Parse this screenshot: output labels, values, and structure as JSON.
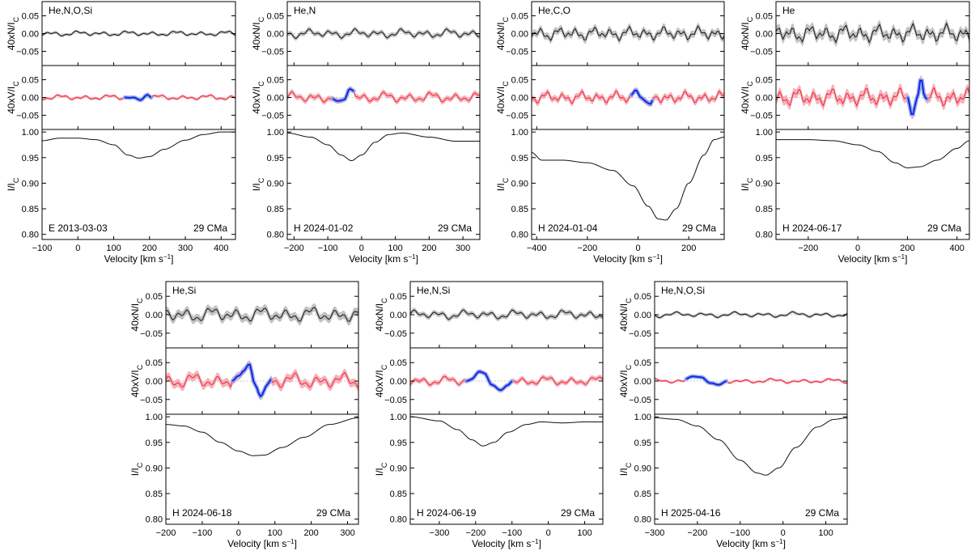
{
  "figure": {
    "star": "29 CMa",
    "n_label": "40xN/I",
    "v_label": "40xV/I",
    "i_label": "I/I",
    "label_sub": "C",
    "xlabel_main": "Velocity [km s",
    "xlabel_sup": "−1",
    "xlabel_end": "]",
    "colors": {
      "null": "#222222",
      "null_band": "#c2c2c2",
      "stokes": "#ee3344",
      "stokes_band": "#f6b3bb",
      "signal": "#0a22dd",
      "signal_band": "#93a6ee",
      "intensity": "#111111",
      "zero_line": "#c8c8c8"
    }
  },
  "chart_data": [
    {
      "type": "line",
      "title": "E 2013-03-03",
      "elements": "He,N,O,Si",
      "star": "29 CMa",
      "xlabel": "Velocity [km s−1]",
      "xlim": [
        -100,
        440
      ],
      "xticks": [
        -100,
        0,
        100,
        200,
        300,
        400
      ],
      "null_ylim": [
        -0.09,
        0.09
      ],
      "v_ylim": [
        -0.09,
        0.09
      ],
      "i_ylim": [
        0.79,
        1.005
      ],
      "band": [
        130,
        205
      ],
      "noise": {
        "n": 0.0035,
        "v": 0.0035,
        "nband": 0.004,
        "vband": 0.004
      },
      "null_amplitude": "small",
      "stokes_v_signal": [
        [
          130,
          0.0
        ],
        [
          155,
          0.0
        ],
        [
          175,
          -0.008
        ],
        [
          195,
          0.008
        ],
        [
          205,
          0.0
        ]
      ],
      "intensity_profile": [
        [
          -100,
          0.983
        ],
        [
          -50,
          0.988
        ],
        [
          0,
          0.988
        ],
        [
          50,
          0.985
        ],
        [
          100,
          0.975
        ],
        [
          140,
          0.955
        ],
        [
          170,
          0.949
        ],
        [
          200,
          0.952
        ],
        [
          240,
          0.966
        ],
        [
          300,
          0.984
        ],
        [
          350,
          0.995
        ],
        [
          400,
          1.0
        ],
        [
          440,
          1.0
        ]
      ]
    },
    {
      "type": "line",
      "title": "H 2024-01-02",
      "elements": "He,N",
      "star": "29 CMa",
      "xlabel": "Velocity [km s−1]",
      "xlim": [
        -220,
        350
      ],
      "xticks": [
        -200,
        -100,
        0,
        100,
        200,
        300
      ],
      "null_ylim": [
        -0.09,
        0.09
      ],
      "v_ylim": [
        -0.09,
        0.09
      ],
      "i_ylim": [
        0.79,
        1.005
      ],
      "band": [
        -90,
        -20
      ],
      "noise": {
        "n": 0.006,
        "v": 0.007,
        "nband": 0.006,
        "vband": 0.006
      },
      "null_amplitude": "moderate",
      "stokes_v_signal": [
        [
          -90,
          0.0
        ],
        [
          -70,
          -0.01
        ],
        [
          -50,
          -0.006
        ],
        [
          -35,
          0.025
        ],
        [
          -20,
          0.018
        ]
      ],
      "intensity_profile": [
        [
          -220,
          0.998
        ],
        [
          -150,
          0.99
        ],
        [
          -100,
          0.975
        ],
        [
          -60,
          0.955
        ],
        [
          -30,
          0.944
        ],
        [
          0,
          0.955
        ],
        [
          40,
          0.98
        ],
        [
          80,
          0.995
        ],
        [
          120,
          0.998
        ],
        [
          200,
          0.99
        ],
        [
          280,
          0.982
        ],
        [
          350,
          0.982
        ]
      ]
    },
    {
      "type": "line",
      "title": "H 2024-01-04",
      "elements": "He,C,O",
      "star": "29 CMa",
      "xlabel": "Velocity [km s−1]",
      "xlim": [
        -420,
        340
      ],
      "xticks": [
        -400,
        -200,
        0,
        200
      ],
      "null_ylim": [
        -0.09,
        0.09
      ],
      "v_ylim": [
        -0.09,
        0.09
      ],
      "i_ylim": [
        0.79,
        1.005
      ],
      "band": [
        -30,
        60
      ],
      "noise": {
        "n": 0.009,
        "v": 0.008,
        "nband": 0.01,
        "vband": 0.01
      },
      "null_amplitude": "moderate",
      "stokes_v_signal": [
        [
          -30,
          0.005
        ],
        [
          -10,
          0.02
        ],
        [
          10,
          0.0
        ],
        [
          30,
          -0.01
        ],
        [
          50,
          -0.018
        ],
        [
          60,
          -0.005
        ]
      ],
      "intensity_profile": [
        [
          -420,
          0.96
        ],
        [
          -380,
          0.945
        ],
        [
          -300,
          0.945
        ],
        [
          -200,
          0.94
        ],
        [
          -100,
          0.925
        ],
        [
          -20,
          0.895
        ],
        [
          40,
          0.855
        ],
        [
          80,
          0.83
        ],
        [
          110,
          0.828
        ],
        [
          150,
          0.85
        ],
        [
          200,
          0.9
        ],
        [
          260,
          0.955
        ],
        [
          300,
          0.985
        ],
        [
          340,
          0.99
        ]
      ]
    },
    {
      "type": "line",
      "title": "H 2024-06-17",
      "elements": "He",
      "star": "29 CMa",
      "xlabel": "Velocity [km s−1]",
      "xlim": [
        -330,
        450
      ],
      "xticks": [
        -200,
        0,
        200,
        400
      ],
      "null_ylim": [
        -0.09,
        0.09
      ],
      "v_ylim": [
        -0.09,
        0.09
      ],
      "i_ylim": [
        0.79,
        1.005
      ],
      "band": [
        200,
        280
      ],
      "noise": {
        "n": 0.012,
        "v": 0.012,
        "nband": 0.012,
        "vband": 0.012
      },
      "null_amplitude": "large",
      "stokes_v_signal": [
        [
          200,
          0.0
        ],
        [
          220,
          -0.05
        ],
        [
          240,
          0.0
        ],
        [
          255,
          0.052
        ],
        [
          270,
          0.0
        ],
        [
          280,
          -0.005
        ]
      ],
      "intensity_profile": [
        [
          -330,
          0.985
        ],
        [
          -200,
          0.985
        ],
        [
          -100,
          0.983
        ],
        [
          0,
          0.975
        ],
        [
          80,
          0.962
        ],
        [
          150,
          0.94
        ],
        [
          200,
          0.93
        ],
        [
          250,
          0.932
        ],
        [
          320,
          0.945
        ],
        [
          400,
          0.968
        ],
        [
          450,
          0.983
        ]
      ]
    },
    {
      "type": "line",
      "title": "H 2024-06-18",
      "elements": "He,Si",
      "star": "29 CMa",
      "xlabel": "Velocity [km s−1]",
      "xlim": [
        -200,
        330
      ],
      "xticks": [
        -200,
        -100,
        0,
        100,
        200,
        300
      ],
      "null_ylim": [
        -0.09,
        0.09
      ],
      "v_ylim": [
        -0.09,
        0.09
      ],
      "i_ylim": [
        0.79,
        1.005
      ],
      "band": [
        -20,
        90
      ],
      "noise": {
        "n": 0.01,
        "v": 0.01,
        "nband": 0.01,
        "vband": 0.01
      },
      "null_amplitude": "large",
      "stokes_v_signal": [
        [
          -20,
          0.0
        ],
        [
          0,
          0.015
        ],
        [
          15,
          0.03
        ],
        [
          30,
          0.045
        ],
        [
          45,
          -0.01
        ],
        [
          60,
          -0.04
        ],
        [
          80,
          -0.01
        ],
        [
          90,
          0.005
        ]
      ],
      "intensity_profile": [
        [
          -200,
          0.985
        ],
        [
          -150,
          0.982
        ],
        [
          -100,
          0.97
        ],
        [
          -50,
          0.95
        ],
        [
          0,
          0.933
        ],
        [
          40,
          0.924
        ],
        [
          70,
          0.925
        ],
        [
          120,
          0.94
        ],
        [
          180,
          0.96
        ],
        [
          250,
          0.985
        ],
        [
          330,
          0.998
        ]
      ]
    },
    {
      "type": "line",
      "title": "H 2024-06-19",
      "elements": "He,N,Si",
      "star": "29 CMa",
      "xlabel": "Velocity [km s−1]",
      "xlim": [
        -380,
        150
      ],
      "xticks": [
        -300,
        -200,
        -100,
        0,
        100
      ],
      "null_ylim": [
        -0.09,
        0.09
      ],
      "v_ylim": [
        -0.09,
        0.09
      ],
      "i_ylim": [
        0.79,
        1.005
      ],
      "band": [
        -230,
        -100
      ],
      "noise": {
        "n": 0.006,
        "v": 0.006,
        "nband": 0.006,
        "vband": 0.006
      },
      "null_amplitude": "moderate",
      "stokes_v_signal": [
        [
          -230,
          0.0
        ],
        [
          -210,
          0.005
        ],
        [
          -190,
          0.025
        ],
        [
          -175,
          0.02
        ],
        [
          -155,
          -0.01
        ],
        [
          -130,
          -0.025
        ],
        [
          -110,
          -0.01
        ],
        [
          -100,
          0.0
        ]
      ],
      "intensity_profile": [
        [
          -380,
          1.0
        ],
        [
          -300,
          0.992
        ],
        [
          -250,
          0.975
        ],
        [
          -210,
          0.955
        ],
        [
          -180,
          0.943
        ],
        [
          -150,
          0.95
        ],
        [
          -110,
          0.97
        ],
        [
          -60,
          0.985
        ],
        [
          -20,
          0.99
        ],
        [
          40,
          0.988
        ],
        [
          100,
          0.99
        ],
        [
          150,
          0.99
        ]
      ]
    },
    {
      "type": "line",
      "title": "H 2025-04-16",
      "elements": "He,N,O,Si",
      "star": "29 CMa",
      "xlabel": "Velocity [km s−1]",
      "xlim": [
        -300,
        150
      ],
      "xticks": [
        -300,
        -200,
        -100,
        0,
        100
      ],
      "null_ylim": [
        -0.09,
        0.09
      ],
      "v_ylim": [
        -0.09,
        0.09
      ],
      "i_ylim": [
        0.79,
        1.005
      ],
      "band": [
        -230,
        -130
      ],
      "noise": {
        "n": 0.0035,
        "v": 0.003,
        "nband": 0.004,
        "vband": 0.004
      },
      "null_amplitude": "small",
      "stokes_v_signal": [
        [
          -230,
          0.005
        ],
        [
          -210,
          0.012
        ],
        [
          -190,
          0.01
        ],
        [
          -170,
          -0.005
        ],
        [
          -150,
          -0.01
        ],
        [
          -130,
          0.0
        ]
      ],
      "intensity_profile": [
        [
          -300,
          0.998
        ],
        [
          -250,
          0.995
        ],
        [
          -200,
          0.982
        ],
        [
          -150,
          0.955
        ],
        [
          -100,
          0.915
        ],
        [
          -60,
          0.89
        ],
        [
          -40,
          0.886
        ],
        [
          -10,
          0.9
        ],
        [
          30,
          0.94
        ],
        [
          80,
          0.98
        ],
        [
          120,
          0.995
        ],
        [
          150,
          0.998
        ]
      ]
    }
  ]
}
